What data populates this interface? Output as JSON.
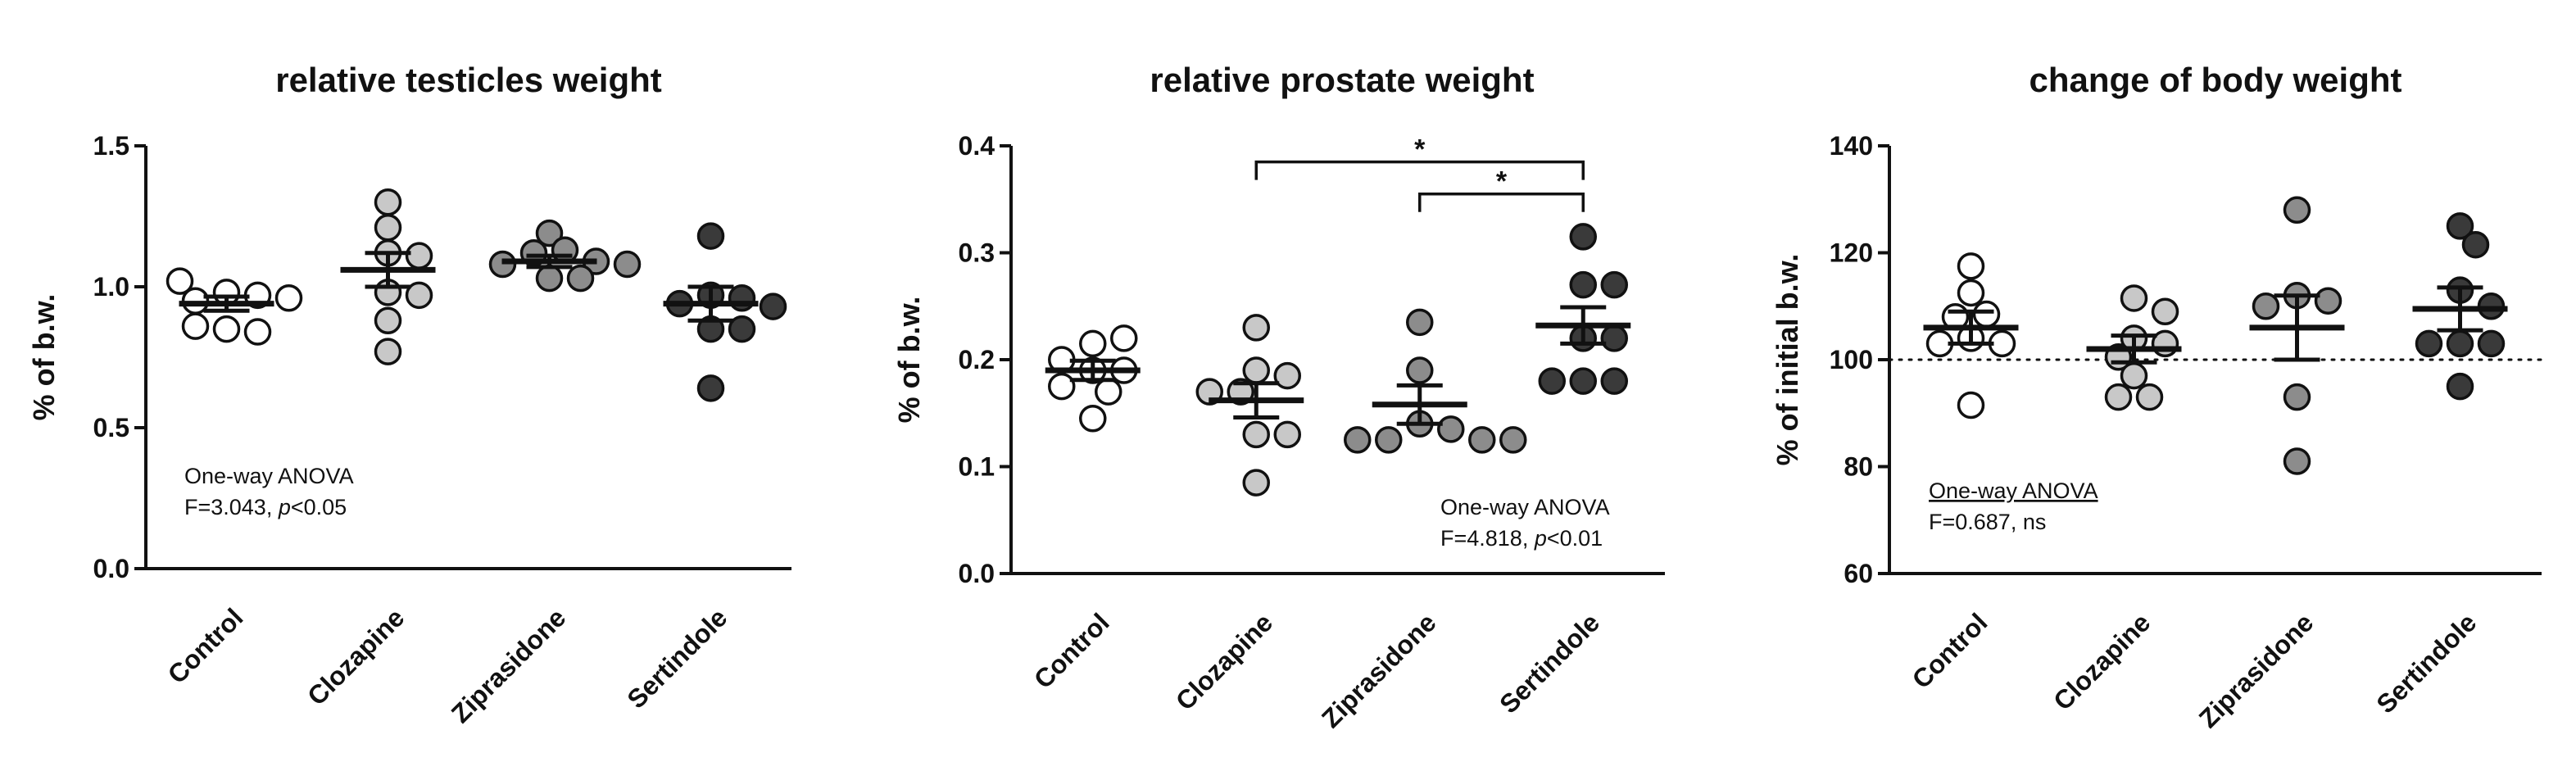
{
  "chart_data": [
    {
      "type": "scatter",
      "title": "relative testicles weight",
      "ylabel": "% of b.w.",
      "xlabel": "",
      "ylim": [
        0,
        1.5
      ],
      "yticks": [
        "0.0",
        "0.5",
        "1.0",
        "1.5"
      ],
      "categories": [
        "Control",
        "Clozapine",
        "Ziprasidone",
        "Sertindole"
      ],
      "colors": [
        "#ffffff",
        "#c8c8c8",
        "#8c8c8c",
        "#3a3a3a"
      ],
      "groups": [
        {
          "name": "Control",
          "points": [
            0.98,
            0.97,
            0.95,
            0.96,
            1.02,
            0.85,
            0.84,
            0.86
          ],
          "mean": 0.94,
          "sem": 0.025
        },
        {
          "name": "Clozapine",
          "points": [
            1.3,
            1.21,
            1.12,
            1.11,
            0.98,
            0.97,
            0.88,
            0.77
          ],
          "mean": 1.06,
          "sem": 0.06
        },
        {
          "name": "Ziprasidone",
          "points": [
            1.19,
            1.13,
            1.12,
            1.09,
            1.08,
            1.08,
            1.03,
            1.03
          ],
          "mean": 1.09,
          "sem": 0.02
        },
        {
          "name": "Sertindole",
          "points": [
            1.18,
            0.97,
            0.96,
            0.94,
            0.93,
            0.85,
            0.85,
            0.64
          ],
          "mean": 0.94,
          "sem": 0.06
        }
      ],
      "annotation": [
        "One-way ANOVA",
        "F=3.043, ",
        "p",
        "<0.05"
      ],
      "significance": [],
      "reference_line": null
    },
    {
      "type": "scatter",
      "title": "relative prostate weight",
      "ylabel": "% of b.w.",
      "xlabel": "",
      "ylim": [
        0,
        0.4
      ],
      "yticks": [
        "0.0",
        "0.1",
        "0.2",
        "0.3",
        "0.4"
      ],
      "categories": [
        "Control",
        "Clozapine",
        "Ziprasidone",
        "Sertindole"
      ],
      "colors": [
        "#ffffff",
        "#c8c8c8",
        "#8c8c8c",
        "#3a3a3a"
      ],
      "groups": [
        {
          "name": "Control",
          "points": [
            0.215,
            0.22,
            0.2,
            0.19,
            0.19,
            0.175,
            0.17,
            0.145
          ],
          "mean": 0.19,
          "sem": 0.009
        },
        {
          "name": "Clozapine",
          "points": [
            0.23,
            0.19,
            0.185,
            0.17,
            0.17,
            0.13,
            0.13,
            0.085
          ],
          "mean": 0.162,
          "sem": 0.016
        },
        {
          "name": "Ziprasidone",
          "points": [
            0.235,
            0.19,
            0.14,
            0.135,
            0.125,
            0.125,
            0.125,
            0.125
          ],
          "mean": 0.158,
          "sem": 0.018
        },
        {
          "name": "Sertindole",
          "points": [
            0.315,
            0.27,
            0.27,
            0.22,
            0.22,
            0.18,
            0.18,
            0.18
          ],
          "mean": 0.232,
          "sem": 0.017
        }
      ],
      "annotation": [
        "One-way ANOVA",
        "F=4.818, ",
        "p",
        "<0.01"
      ],
      "significance": [
        {
          "from": 1,
          "to": 3,
          "y": 0.385,
          "label": "*"
        },
        {
          "from": 2,
          "to": 3,
          "y": 0.355,
          "label": "*"
        }
      ],
      "reference_line": null
    },
    {
      "type": "scatter",
      "title": "change of body weight",
      "ylabel": "% of initial b.w.",
      "xlabel": "",
      "ylim": [
        60,
        140
      ],
      "yticks": [
        "60",
        "80",
        "100",
        "120",
        "140"
      ],
      "categories": [
        "Control",
        "Clozapine",
        "Ziprasidone",
        "Sertindole"
      ],
      "colors": [
        "#ffffff",
        "#c8c8c8",
        "#8c8c8c",
        "#3a3a3a"
      ],
      "groups": [
        {
          "name": "Control",
          "points": [
            117.5,
            112.5,
            108.5,
            108.0,
            104.0,
            103.0,
            103.0,
            91.5
          ],
          "mean": 106.0,
          "sem": 3.0
        },
        {
          "name": "Clozapine",
          "points": [
            111.5,
            109.0,
            104.0,
            103.0,
            100.5,
            97.0,
            93.0,
            93.0
          ],
          "mean": 102.0,
          "sem": 2.5
        },
        {
          "name": "Ziprasidone",
          "points": [
            128.0,
            112.0,
            111.0,
            110.0,
            93.0,
            81.0
          ],
          "mean": 106.0,
          "sem": 6.0
        },
        {
          "name": "Sertindole",
          "points": [
            125.0,
            121.5,
            113.0,
            110.0,
            103.0,
            103.0,
            103.0,
            95.0
          ],
          "mean": 109.5,
          "sem": 4.0
        }
      ],
      "annotation": [
        "One-way ANOVA",
        "F=0.687, ns"
      ],
      "significance": [],
      "reference_line": 100
    }
  ]
}
